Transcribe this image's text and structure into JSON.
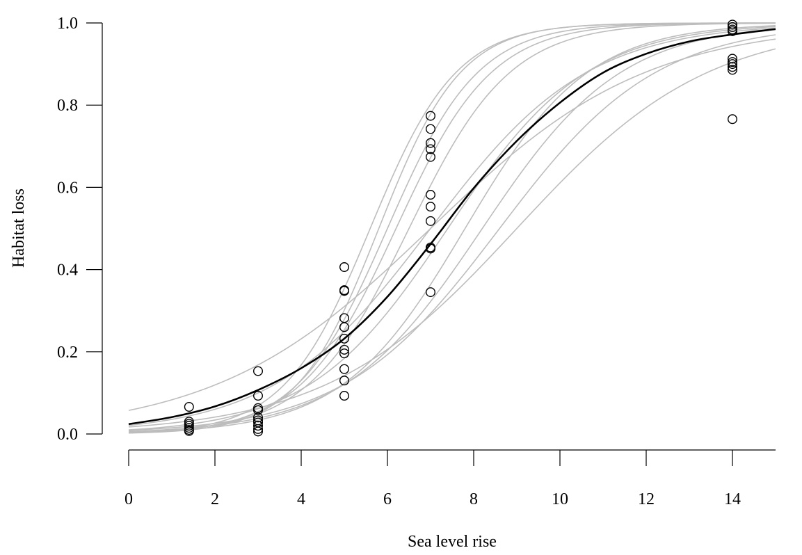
{
  "chart_data": {
    "type": "scatter",
    "title": "",
    "xlabel": "Sea level rise",
    "ylabel": "Habitat loss",
    "xlim": [
      0,
      15
    ],
    "ylim": [
      0,
      1
    ],
    "x_ticks": [
      0,
      2,
      4,
      6,
      8,
      10,
      12,
      14
    ],
    "y_ticks": [
      0.0,
      0.2,
      0.4,
      0.6,
      0.8,
      1.0
    ],
    "x_tick_labels": [
      "0",
      "2",
      "4",
      "6",
      "8",
      "10",
      "12",
      "14"
    ],
    "y_tick_labels": [
      "0.0",
      "0.2",
      "0.4",
      "0.6",
      "0.8",
      "1.0"
    ],
    "grid": false,
    "legend": "none",
    "colors": {
      "points": "#000000",
      "mean_curve": "#000000",
      "individual_curves": "#bdbdbd"
    },
    "points": [
      {
        "x": 1.4,
        "y": 0.066
      },
      {
        "x": 1.4,
        "y": 0.03
      },
      {
        "x": 1.4,
        "y": 0.025
      },
      {
        "x": 1.4,
        "y": 0.02
      },
      {
        "x": 1.4,
        "y": 0.015
      },
      {
        "x": 1.4,
        "y": 0.01
      },
      {
        "x": 1.4,
        "y": 0.007
      },
      {
        "x": 3.0,
        "y": 0.153
      },
      {
        "x": 3.0,
        "y": 0.093
      },
      {
        "x": 3.0,
        "y": 0.063
      },
      {
        "x": 3.0,
        "y": 0.058
      },
      {
        "x": 3.0,
        "y": 0.04
      },
      {
        "x": 3.0,
        "y": 0.033
      },
      {
        "x": 3.0,
        "y": 0.028
      },
      {
        "x": 3.0,
        "y": 0.02
      },
      {
        "x": 3.0,
        "y": 0.012
      },
      {
        "x": 3.0,
        "y": 0.006
      },
      {
        "x": 5.0,
        "y": 0.406
      },
      {
        "x": 5.0,
        "y": 0.35
      },
      {
        "x": 5.0,
        "y": 0.348
      },
      {
        "x": 5.0,
        "y": 0.282
      },
      {
        "x": 5.0,
        "y": 0.26
      },
      {
        "x": 5.0,
        "y": 0.232
      },
      {
        "x": 5.0,
        "y": 0.205
      },
      {
        "x": 5.0,
        "y": 0.196
      },
      {
        "x": 5.0,
        "y": 0.158
      },
      {
        "x": 5.0,
        "y": 0.13
      },
      {
        "x": 5.0,
        "y": 0.093
      },
      {
        "x": 7.0,
        "y": 0.774
      },
      {
        "x": 7.0,
        "y": 0.742
      },
      {
        "x": 7.0,
        "y": 0.708
      },
      {
        "x": 7.0,
        "y": 0.693
      },
      {
        "x": 7.0,
        "y": 0.674
      },
      {
        "x": 7.0,
        "y": 0.582
      },
      {
        "x": 7.0,
        "y": 0.553
      },
      {
        "x": 7.0,
        "y": 0.518
      },
      {
        "x": 7.0,
        "y": 0.454
      },
      {
        "x": 7.0,
        "y": 0.451
      },
      {
        "x": 7.0,
        "y": 0.345
      },
      {
        "x": 14.0,
        "y": 0.996
      },
      {
        "x": 14.0,
        "y": 0.99
      },
      {
        "x": 14.0,
        "y": 0.984
      },
      {
        "x": 14.0,
        "y": 0.98
      },
      {
        "x": 14.0,
        "y": 0.913
      },
      {
        "x": 14.0,
        "y": 0.905
      },
      {
        "x": 14.0,
        "y": 0.9
      },
      {
        "x": 14.0,
        "y": 0.893
      },
      {
        "x": 14.0,
        "y": 0.886
      },
      {
        "x": 14.0,
        "y": 0.766
      }
    ],
    "mean_curve": {
      "x": [
        0,
        1,
        2,
        3,
        4,
        5,
        6,
        7,
        8,
        9,
        10,
        11,
        12,
        13,
        14,
        15
      ],
      "y": [
        0.024,
        0.041,
        0.067,
        0.107,
        0.16,
        0.232,
        0.334,
        0.462,
        0.598,
        0.713,
        0.806,
        0.879,
        0.925,
        0.955,
        0.972,
        0.985
      ]
    },
    "individual_curves": [
      {
        "x0": 5.6,
        "k": 1.0
      },
      {
        "x0": 5.8,
        "k": 1.05
      },
      {
        "x0": 6.0,
        "k": 0.95
      },
      {
        "x0": 6.2,
        "k": 0.9
      },
      {
        "x0": 6.5,
        "k": 0.85
      },
      {
        "x0": 7.0,
        "k": 0.55
      },
      {
        "x0": 7.4,
        "k": 0.62
      },
      {
        "x0": 7.8,
        "k": 0.7
      },
      {
        "x0": 8.2,
        "k": 0.62
      },
      {
        "x0": 8.6,
        "k": 0.55
      },
      {
        "x0": 9.0,
        "k": 0.45
      },
      {
        "x0": 7.0,
        "k": 0.4
      }
    ]
  }
}
